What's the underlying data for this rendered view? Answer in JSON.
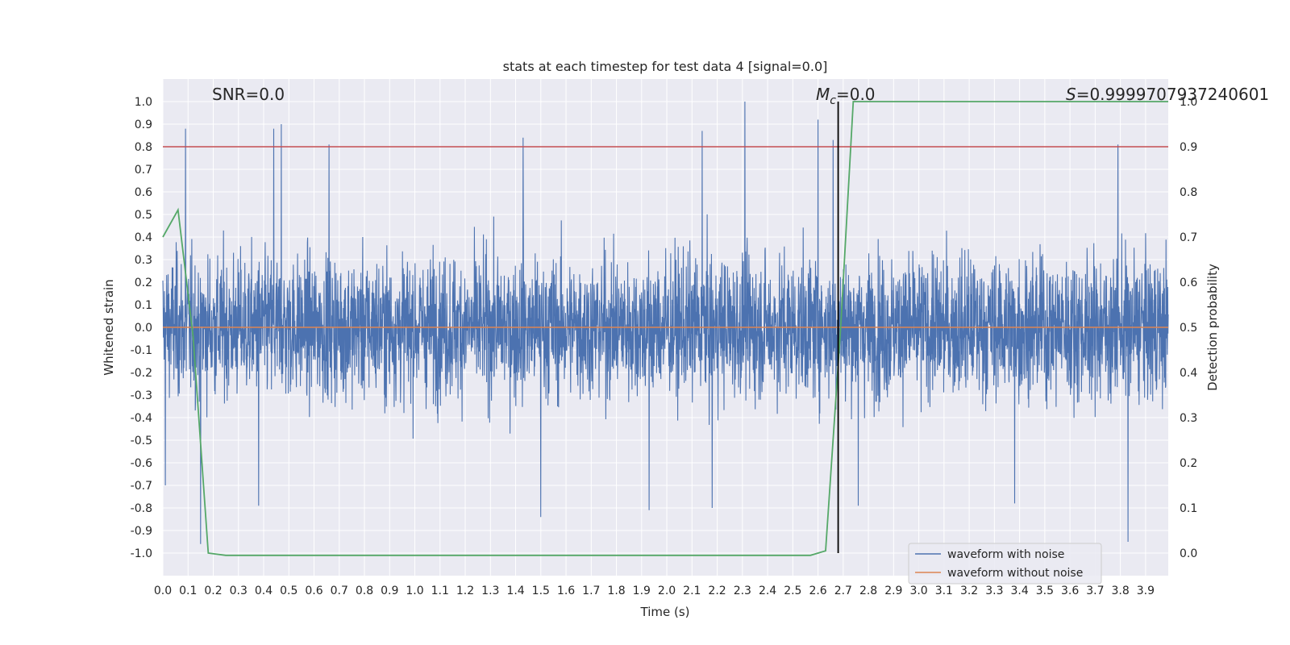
{
  "chart_data": {
    "type": "line",
    "title": "stats at each timestep for test data 4 [signal=0.0]",
    "xlabel": "Time (s)",
    "ylabel": "Whitened strain",
    "y2label": "Detection probability",
    "xlim": [
      0.0,
      3.99
    ],
    "ylim": [
      -1.1,
      1.1
    ],
    "y2lim": [
      -0.05,
      1.05
    ],
    "x_ticks": [
      "0.0",
      "0.1",
      "0.2",
      "0.3",
      "0.4",
      "0.5",
      "0.6",
      "0.7",
      "0.8",
      "0.9",
      "1.0",
      "1.1",
      "1.2",
      "1.3",
      "1.4",
      "1.5",
      "1.6",
      "1.7",
      "1.8",
      "1.9",
      "2.0",
      "2.1",
      "2.2",
      "2.3",
      "2.4",
      "2.5",
      "2.6",
      "2.7",
      "2.8",
      "2.9",
      "3.0",
      "3.1",
      "3.2",
      "3.3",
      "3.4",
      "3.5",
      "3.6",
      "3.7",
      "3.8",
      "3.9"
    ],
    "y_ticks": [
      "1.0",
      "0.9",
      "0.8",
      "0.7",
      "0.6",
      "0.5",
      "0.4",
      "0.3",
      "0.2",
      "0.1",
      "0.0",
      "-0.1",
      "-0.2",
      "-0.3",
      "-0.4",
      "-0.5",
      "-0.6",
      "-0.7",
      "-0.8",
      "-0.9",
      "-1.0"
    ],
    "y2_ticks": [
      "1.0",
      "0.9",
      "0.8",
      "0.7",
      "0.6",
      "0.5",
      "0.4",
      "0.3",
      "0.2",
      "0.1",
      "0.0"
    ],
    "grid": true,
    "legend_position": "bottom-right",
    "annotations": {
      "snr": "SNR=0.0",
      "mc_symbol": "M",
      "mc_sub": "c",
      "mc_value": "=0.0",
      "s_symbol": "S",
      "s_value": "=0.9999707937240601"
    },
    "series": [
      {
        "name": "waveform with noise",
        "axis": "left",
        "color": "#4c72b0",
        "envelope": {
          "note_x": [
            0.0,
            0.5,
            1.0,
            1.5,
            2.0,
            2.5,
            3.0,
            3.5,
            3.99
          ],
          "typical_amplitude": 0.4,
          "spikes": [
            {
              "x": 0.09,
              "y": 0.88
            },
            {
              "x": 0.44,
              "y": 0.88
            },
            {
              "x": 0.47,
              "y": 0.9
            },
            {
              "x": 0.66,
              "y": 0.81
            },
            {
              "x": 1.43,
              "y": 0.84
            },
            {
              "x": 2.14,
              "y": 0.87
            },
            {
              "x": 2.31,
              "y": 1.0
            },
            {
              "x": 2.6,
              "y": 0.92
            },
            {
              "x": 2.66,
              "y": 0.83
            },
            {
              "x": 3.79,
              "y": 0.81
            },
            {
              "x": 0.01,
              "y": -0.7
            },
            {
              "x": 0.15,
              "y": -0.96
            },
            {
              "x": 0.38,
              "y": -0.79
            },
            {
              "x": 1.5,
              "y": -0.84
            },
            {
              "x": 1.93,
              "y": -0.81
            },
            {
              "x": 2.18,
              "y": -0.8
            },
            {
              "x": 2.76,
              "y": -0.79
            },
            {
              "x": 3.38,
              "y": -0.78
            },
            {
              "x": 3.83,
              "y": -0.95
            }
          ]
        }
      },
      {
        "name": "waveform without noise",
        "axis": "left",
        "color": "#dd8452",
        "x": [
          0.0,
          3.99
        ],
        "y": [
          0.0,
          0.0
        ]
      },
      {
        "name": "detection probability",
        "axis": "right",
        "color": "#55a868",
        "x": [
          0.0,
          0.06,
          0.12,
          0.18,
          0.25,
          0.5,
          1.0,
          1.5,
          2.0,
          2.5,
          2.57,
          2.63,
          2.69,
          2.74,
          3.0,
          3.5,
          3.99
        ],
        "y": [
          0.7,
          0.76,
          0.48,
          0.0,
          -0.005,
          -0.005,
          -0.005,
          -0.005,
          -0.005,
          -0.005,
          -0.005,
          0.005,
          0.5,
          1.0,
          1.0,
          1.0,
          1.0
        ]
      }
    ],
    "threshold_line": {
      "axis": "right",
      "y": 0.9,
      "color": "#c44e52"
    },
    "marker_line": {
      "axis": "right",
      "x": 2.68,
      "y_from": 0.0,
      "y_to": 1.0,
      "color": "#000000"
    }
  }
}
